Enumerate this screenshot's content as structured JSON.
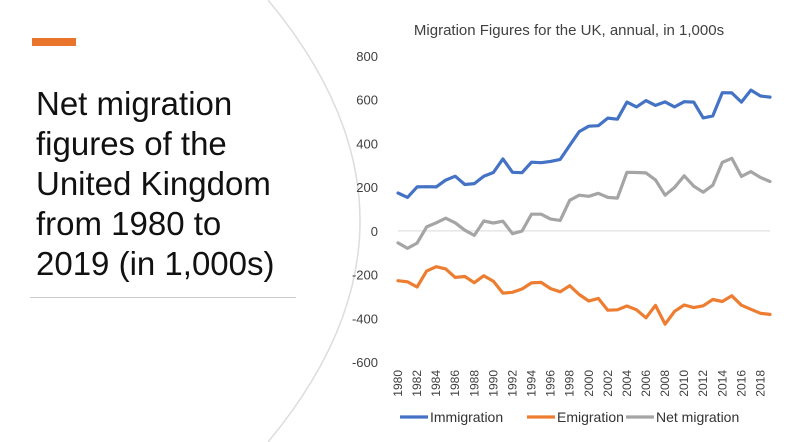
{
  "slide": {
    "title": "Net migration figures of the United Kingdom from 1980 to 2019 (in 1,000s)",
    "accent_color": "#E8752B"
  },
  "chart_data": {
    "type": "line",
    "title": "Migration Figures for the UK, annual, in 1,000s",
    "xlabel": "",
    "ylabel": "",
    "ylim": [
      -600,
      800
    ],
    "yticks": [
      -600,
      -400,
      -200,
      0,
      200,
      400,
      600,
      800
    ],
    "xticks": [
      "1980",
      "1982",
      "1984",
      "1986",
      "1988",
      "1990",
      "1992",
      "1994",
      "1996",
      "1998",
      "2000",
      "2002",
      "2004",
      "2006",
      "2008",
      "2010",
      "2012",
      "2014",
      "2016",
      "2018"
    ],
    "x": [
      1980,
      1981,
      1982,
      1983,
      1984,
      1985,
      1986,
      1987,
      1988,
      1989,
      1990,
      1991,
      1992,
      1993,
      1994,
      1995,
      1996,
      1997,
      1998,
      1999,
      2000,
      2001,
      2002,
      2003,
      2004,
      2005,
      2006,
      2007,
      2008,
      2009,
      2010,
      2011,
      2012,
      2013,
      2014,
      2015,
      2016,
      2017,
      2018,
      2019
    ],
    "grid": false,
    "legend": "bottom",
    "series": [
      {
        "name": "Immigration",
        "color": "#4472C4",
        "values": [
          173,
          153,
          201,
          202,
          201,
          232,
          250,
          212,
          216,
          250,
          267,
          329,
          268,
          266,
          314,
          312,
          318,
          327,
          391,
          454,
          479,
          481,
          516,
          511,
          589,
          567,
          596,
          574,
          590,
          567,
          591,
          589,
          517,
          526,
          632,
          631,
          589,
          644,
          617,
          612
        ]
      },
      {
        "name": "Emigration",
        "color": "#ED7D31",
        "values": [
          -228,
          -233,
          -257,
          -184,
          -164,
          -174,
          -213,
          -209,
          -237,
          -205,
          -231,
          -285,
          -281,
          -266,
          -238,
          -236,
          -264,
          -279,
          -251,
          -291,
          -321,
          -309,
          -363,
          -361,
          -344,
          -361,
          -398,
          -341,
          -427,
          -368,
          -339,
          -351,
          -343,
          -314,
          -323,
          -297,
          -340,
          -359,
          -377,
          -382
        ]
      },
      {
        "name": "Net migration",
        "color": "#A5A5A5",
        "values": [
          -55,
          -80,
          -56,
          18,
          37,
          58,
          37,
          3,
          -21,
          45,
          36,
          44,
          -13,
          -1,
          76,
          76,
          54,
          48,
          140,
          163,
          158,
          172,
          153,
          150,
          268,
          267,
          265,
          233,
          163,
          199,
          252,
          205,
          177,
          209,
          313,
          332,
          249,
          271,
          244,
          226
        ]
      }
    ]
  }
}
